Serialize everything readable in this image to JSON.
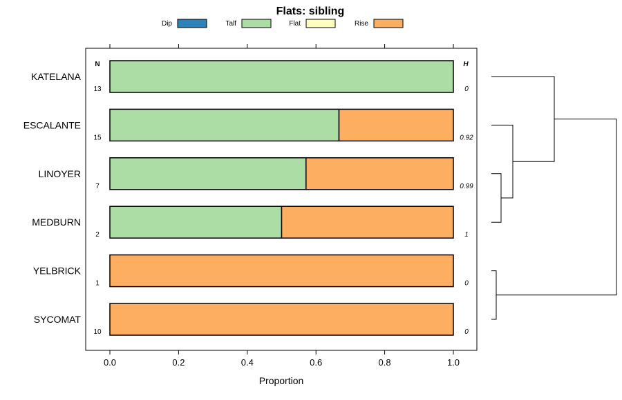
{
  "chart_data": {
    "type": "bar",
    "orientation": "horizontal",
    "stacked": true,
    "title": "Flats: sibling",
    "xlabel": "Proportion",
    "ylabel": "",
    "xlim": [
      0,
      1
    ],
    "x_ticks": [
      "0.0",
      "0.2",
      "0.4",
      "0.6",
      "0.8",
      "1.0"
    ],
    "legend": {
      "placement": "top"
    },
    "categories": [
      "KATELANA",
      "ESCALANTE",
      "LINOYER",
      "MEDBURN",
      "YELBRICK",
      "SYCOMAT"
    ],
    "series": [
      {
        "name": "Dip",
        "color": "#2b83ba",
        "values": [
          0,
          0,
          0,
          0,
          0,
          0
        ]
      },
      {
        "name": "Talf",
        "color": "#abdda4",
        "values": [
          1.0,
          0.667,
          0.571,
          0.5,
          0,
          0
        ]
      },
      {
        "name": "Flat",
        "color": "#ffffbf",
        "values": [
          0,
          0,
          0,
          0,
          0,
          0
        ]
      },
      {
        "name": "Rise",
        "color": "#fdae61",
        "values": [
          0,
          0.333,
          0.429,
          0.5,
          1.0,
          1.0
        ]
      }
    ],
    "n_header": "N",
    "n_values": [
      "13",
      "15",
      "7",
      "2",
      "1",
      "10"
    ],
    "h_header": "H",
    "h_values": [
      "0",
      "0.92",
      "0.99",
      "1",
      "0",
      "0"
    ],
    "dendrogram": "hierarchical clustering of categories shown at right"
  }
}
